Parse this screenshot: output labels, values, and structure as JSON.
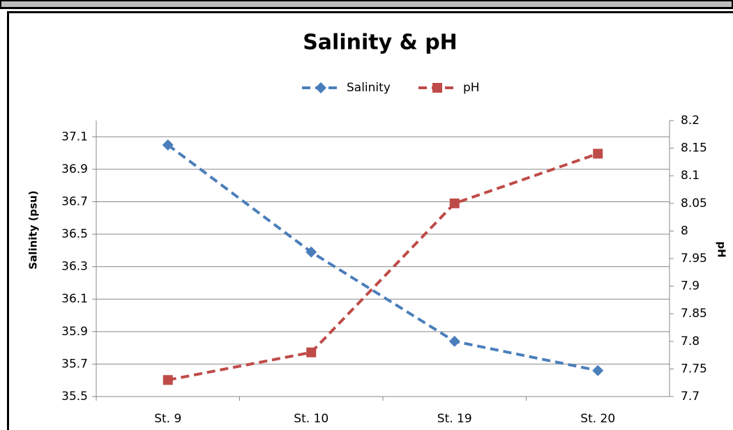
{
  "chart_data": {
    "type": "line",
    "title": "Salinity & pH",
    "categories": [
      "St. 9",
      "St. 10",
      "St. 19",
      "St. 20"
    ],
    "ylabel": "Salinity (psu)",
    "y2label": "pH",
    "ylim": [
      35.5,
      37.2
    ],
    "yticks": [
      35.5,
      35.7,
      35.9,
      36.1,
      36.3,
      36.5,
      36.7,
      36.9,
      37.1
    ],
    "y2lim": [
      7.7,
      8.2
    ],
    "y2ticks": [
      7.7,
      7.75,
      7.8,
      7.85,
      7.9,
      7.95,
      8,
      8.05,
      8.1,
      8.15,
      8.2
    ],
    "grid": true,
    "legend": "top",
    "series": [
      {
        "name": "Salinity",
        "color": "#4a7ebb",
        "marker": "diamond",
        "values": [
          37.05,
          36.39,
          35.84,
          35.66
        ]
      },
      {
        "name": "pH",
        "color": "#be4b48",
        "marker": "square",
        "axis": "y2",
        "values": [
          7.73,
          7.78,
          8.05,
          8.14
        ]
      }
    ]
  }
}
